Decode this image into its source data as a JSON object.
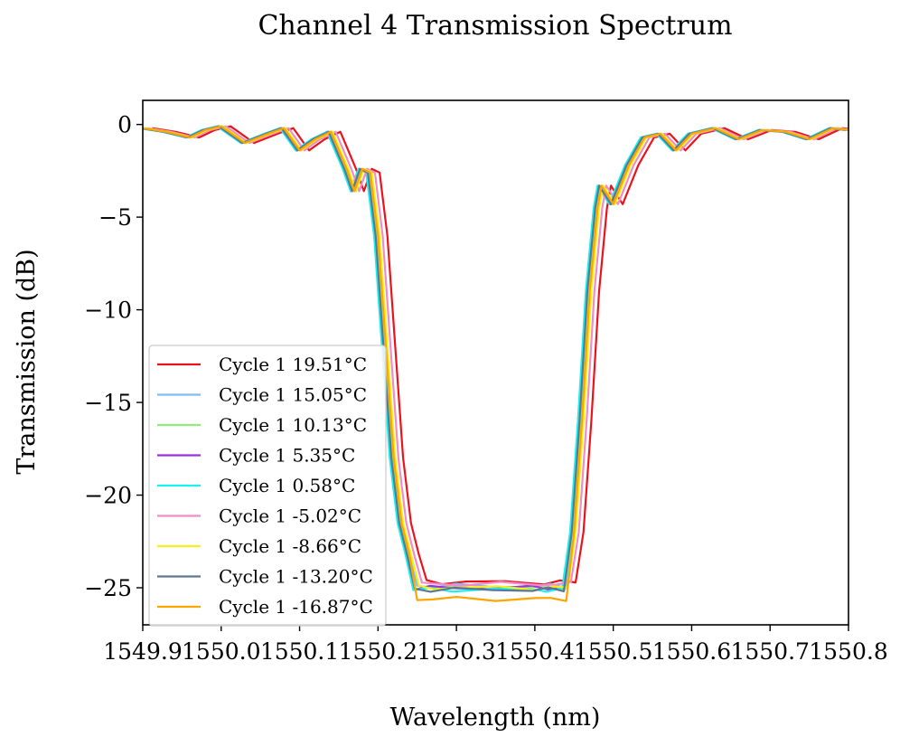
{
  "chart_data": {
    "type": "line",
    "title": "Channel 4 Transmission Spectrum",
    "xlabel": "Wavelength (nm)",
    "ylabel": "Transmission (dB)",
    "xlim": [
      1549.9,
      1550.8
    ],
    "ylim": [
      -27.0,
      1.3
    ],
    "grid": false,
    "legend_position": "lower-left",
    "x_ticks": [
      "1549.9",
      "1550.0",
      "1550.1",
      "1550.2",
      "1550.3",
      "1550.4",
      "1550.5",
      "1550.6",
      "1550.7",
      "1550.8"
    ],
    "y_ticks": [
      "0",
      "−5",
      "−10",
      "−15",
      "−20",
      "−25"
    ],
    "series": [
      {
        "name": "Cycle 1 19.51°C",
        "color": "#e8141c",
        "shift": 0.012,
        "floor": -24.7
      },
      {
        "name": "Cycle 1 15.05°C",
        "color": "#7cbcf8",
        "shift": 0.0,
        "floor": -24.9
      },
      {
        "name": "Cycle 1 10.13°C",
        "color": "#90ee78",
        "shift": -0.002,
        "floor": -25.0
      },
      {
        "name": "Cycle 1 5.35°C",
        "color": "#9b30e0",
        "shift": -0.004,
        "floor": -25.0
      },
      {
        "name": "Cycle 1 0.58°C",
        "color": "#1cf0f0",
        "shift": -0.005,
        "floor": -25.1
      },
      {
        "name": "Cycle 1 -5.02°C",
        "color": "#f08cc8",
        "shift": 0.006,
        "floor": -24.8
      },
      {
        "name": "Cycle 1 -8.66°C",
        "color": "#f4f01c",
        "shift": 0.002,
        "floor": -25.0
      },
      {
        "name": "Cycle 1 -13.20°C",
        "color": "#5a7894",
        "shift": -0.003,
        "floor": -25.1
      },
      {
        "name": "Cycle 1 -16.87°C",
        "color": "#ffa500",
        "shift": 0.0,
        "floor": -25.6
      }
    ],
    "base_shape": {
      "x": [
        1549.9,
        1549.93,
        1549.96,
        1549.98,
        1550.0,
        1550.03,
        1550.06,
        1550.08,
        1550.1,
        1550.12,
        1550.14,
        1550.16,
        1550.17,
        1550.18,
        1550.19,
        1550.2,
        1550.21,
        1550.22,
        1550.23,
        1550.24,
        1550.25,
        1550.27,
        1550.3,
        1550.35,
        1550.4,
        1550.42,
        1550.44,
        1550.45,
        1550.46,
        1550.47,
        1550.48,
        1550.485,
        1550.5,
        1550.52,
        1550.54,
        1550.56,
        1550.58,
        1550.6,
        1550.63,
        1550.66,
        1550.69,
        1550.72,
        1550.75,
        1550.78,
        1550.8
      ],
      "y": [
        -0.2,
        -0.4,
        -0.7,
        -0.3,
        -0.1,
        -1.0,
        -0.5,
        -0.2,
        -1.4,
        -0.8,
        -0.4,
        -2.4,
        -3.6,
        -2.4,
        -2.6,
        -6.0,
        -12.0,
        -18.0,
        -21.5,
        -23.2,
        -24.2,
        -24.8,
        -25.0,
        -25.0,
        -25.0,
        -24.8,
        -24.0,
        -22.0,
        -16.0,
        -9.0,
        -4.5,
        -3.3,
        -4.3,
        -2.2,
        -0.7,
        -0.5,
        -1.4,
        -0.5,
        -0.2,
        -0.8,
        -0.3,
        -0.4,
        -0.8,
        -0.2,
        -0.3
      ]
    }
  }
}
